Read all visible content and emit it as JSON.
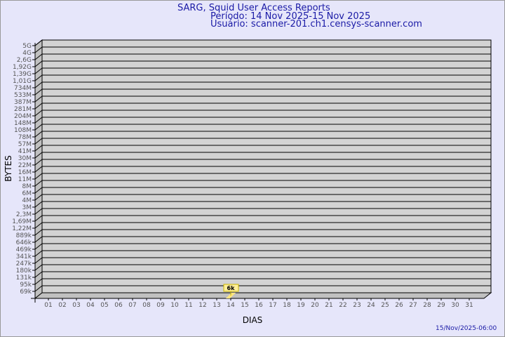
{
  "header": {
    "title": "SARG, Squid User Access Reports",
    "period": "Período: 14 Nov 2025-15 Nov 2025",
    "user": "Usuário: scanner-201.ch1.censys-scanner.com"
  },
  "footer": {
    "timestamp": "15/Nov/2025-06:00"
  },
  "chart_data": {
    "type": "bar",
    "title": "SARG, Squid User Access Reports",
    "xlabel": "DIAS",
    "ylabel": "BYTES",
    "y_scale": "log",
    "grid": true,
    "y_ticks": [
      "69k",
      "95k",
      "131k",
      "180k",
      "247k",
      "341k",
      "469k",
      "646k",
      "889k",
      "1,22M",
      "1,69M",
      "2,3M",
      "3M",
      "4M",
      "6M",
      "8M",
      "11M",
      "16M",
      "22M",
      "30M",
      "41M",
      "57M",
      "78M",
      "108M",
      "148M",
      "204M",
      "281M",
      "387M",
      "533M",
      "734M",
      "1,01G",
      "1,39G",
      "1,92G",
      "2,6G",
      "4G",
      "5G"
    ],
    "categories": [
      "01",
      "02",
      "03",
      "04",
      "05",
      "06",
      "07",
      "08",
      "09",
      "10",
      "11",
      "12",
      "13",
      "14",
      "15",
      "16",
      "17",
      "18",
      "19",
      "20",
      "21",
      "22",
      "23",
      "24",
      "25",
      "26",
      "27",
      "28",
      "29",
      "30",
      "31"
    ],
    "series": [
      {
        "values": [
          null,
          null,
          null,
          null,
          null,
          null,
          null,
          null,
          null,
          null,
          null,
          null,
          null,
          6000,
          null,
          null,
          null,
          null,
          null,
          null,
          null,
          null,
          null,
          null,
          null,
          null,
          null,
          null,
          null,
          null,
          null
        ],
        "labels": {
          "14": "6k"
        }
      }
    ],
    "colors": {
      "bar": "#ffe680",
      "plot": "#d3d3d3",
      "wall": "#c0c0c0",
      "text": "#1a1aa6"
    }
  }
}
